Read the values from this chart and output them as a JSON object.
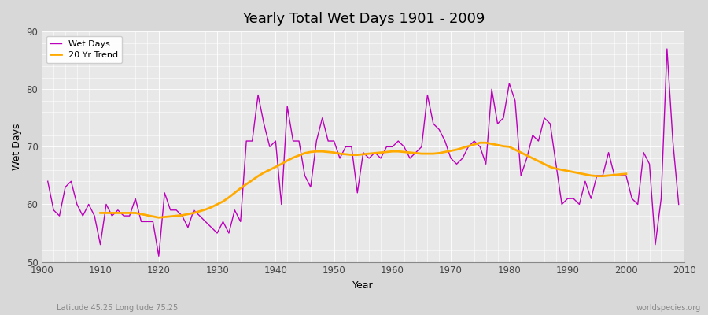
{
  "title": "Yearly Total Wet Days 1901 - 2009",
  "xlabel": "Year",
  "ylabel": "Wet Days",
  "bottom_left_label": "Latitude 45.25 Longitude 75.25",
  "bottom_right_label": "worldspecies.org",
  "ylim": [
    50,
    90
  ],
  "yticks": [
    50,
    60,
    70,
    80,
    90
  ],
  "xlim": [
    1900,
    2010
  ],
  "legend_entries": [
    "Wet Days",
    "20 Yr Trend"
  ],
  "wet_days_color": "#bb00bb",
  "trend_color": "#ffaa00",
  "figure_bg_color": "#d8d8d8",
  "plot_bg_color": "#e8e8e8",
  "years": [
    1901,
    1902,
    1903,
    1904,
    1905,
    1906,
    1907,
    1908,
    1909,
    1910,
    1911,
    1912,
    1913,
    1914,
    1915,
    1916,
    1917,
    1918,
    1919,
    1920,
    1921,
    1922,
    1923,
    1924,
    1925,
    1926,
    1927,
    1928,
    1929,
    1930,
    1931,
    1932,
    1933,
    1934,
    1935,
    1936,
    1937,
    1938,
    1939,
    1940,
    1941,
    1942,
    1943,
    1944,
    1945,
    1946,
    1947,
    1948,
    1949,
    1950,
    1951,
    1952,
    1953,
    1954,
    1955,
    1956,
    1957,
    1958,
    1959,
    1960,
    1961,
    1962,
    1963,
    1964,
    1965,
    1966,
    1967,
    1968,
    1969,
    1970,
    1971,
    1972,
    1973,
    1974,
    1975,
    1976,
    1977,
    1978,
    1979,
    1980,
    1981,
    1982,
    1983,
    1984,
    1985,
    1986,
    1987,
    1988,
    1989,
    1990,
    1991,
    1992,
    1993,
    1994,
    1995,
    1996,
    1997,
    1998,
    1999,
    2000,
    2001,
    2002,
    2003,
    2004,
    2005,
    2006,
    2007,
    2008,
    2009
  ],
  "wet_days": [
    64,
    59,
    58,
    63,
    64,
    60,
    58,
    60,
    58,
    53,
    60,
    58,
    59,
    58,
    58,
    61,
    57,
    57,
    57,
    51,
    62,
    59,
    59,
    58,
    56,
    59,
    58,
    57,
    56,
    55,
    57,
    55,
    59,
    57,
    71,
    71,
    79,
    74,
    70,
    71,
    60,
    77,
    71,
    71,
    65,
    63,
    71,
    75,
    71,
    71,
    68,
    70,
    70,
    62,
    69,
    68,
    69,
    68,
    70,
    70,
    71,
    70,
    68,
    69,
    70,
    79,
    74,
    73,
    71,
    68,
    67,
    68,
    70,
    71,
    70,
    67,
    80,
    74,
    75,
    81,
    78,
    65,
    68,
    72,
    71,
    75,
    74,
    67,
    60,
    61,
    61,
    60,
    64,
    61,
    65,
    65,
    69,
    65,
    65,
    65,
    61,
    60,
    69,
    67,
    53,
    61,
    87,
    71,
    60
  ],
  "trend_years": [
    1910,
    1911,
    1912,
    1913,
    1914,
    1915,
    1916,
    1917,
    1918,
    1919,
    1920,
    1921,
    1922,
    1923,
    1924,
    1925,
    1926,
    1927,
    1928,
    1929,
    1930,
    1931,
    1932,
    1933,
    1934,
    1935,
    1936,
    1937,
    1938,
    1939,
    1940,
    1941,
    1942,
    1943,
    1944,
    1945,
    1946,
    1947,
    1948,
    1949,
    1950,
    1951,
    1952,
    1953,
    1954,
    1955,
    1956,
    1957,
    1958,
    1959,
    1960,
    1961,
    1962,
    1963,
    1964,
    1965,
    1966,
    1967,
    1968,
    1969,
    1970,
    1971,
    1972,
    1973,
    1974,
    1975,
    1976,
    1977,
    1978,
    1979,
    1980,
    1981,
    1982,
    1983,
    1984,
    1985,
    1986,
    1987,
    1988,
    1989,
    1990,
    1991,
    1992,
    1993,
    1994,
    1995,
    1996,
    1997,
    1998,
    1999,
    2000
  ],
  "trend_values": [
    58.5,
    58.5,
    58.5,
    58.5,
    58.5,
    58.5,
    58.5,
    58.3,
    58.1,
    57.9,
    57.7,
    57.8,
    57.9,
    58.0,
    58.1,
    58.3,
    58.5,
    58.8,
    59.1,
    59.5,
    60.0,
    60.5,
    61.2,
    62.0,
    62.8,
    63.5,
    64.2,
    64.9,
    65.5,
    66.0,
    66.5,
    67.0,
    67.6,
    68.1,
    68.5,
    68.9,
    69.1,
    69.2,
    69.2,
    69.1,
    69.0,
    68.8,
    68.7,
    68.6,
    68.6,
    68.7,
    68.8,
    68.9,
    69.0,
    69.1,
    69.2,
    69.2,
    69.1,
    69.0,
    68.9,
    68.8,
    68.8,
    68.8,
    68.9,
    69.1,
    69.3,
    69.5,
    69.8,
    70.1,
    70.4,
    70.7,
    70.7,
    70.5,
    70.3,
    70.1,
    70.0,
    69.5,
    69.0,
    68.5,
    68.0,
    67.5,
    67.0,
    66.5,
    66.2,
    66.0,
    65.8,
    65.6,
    65.4,
    65.2,
    65.0,
    64.9,
    64.9,
    65.0,
    65.1,
    65.2,
    65.3
  ]
}
